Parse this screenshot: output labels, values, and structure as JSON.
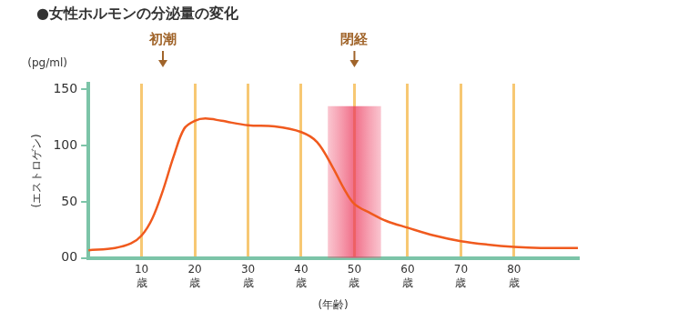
{
  "chart_data": {
    "type": "line",
    "title": "●女性ホルモンの分泌量の変化",
    "y_unit": "(pg/ml)",
    "y_label": "(エストロゲン)",
    "x_label": "(年齢)",
    "x": [
      0,
      5,
      8,
      10,
      12,
      14,
      16,
      18,
      20,
      22,
      25,
      30,
      35,
      40,
      43,
      46,
      48,
      50,
      53,
      56,
      60,
      65,
      70,
      75,
      80,
      85,
      92
    ],
    "values": [
      7,
      9,
      13,
      20,
      35,
      60,
      90,
      115,
      122,
      124,
      122,
      118,
      117,
      112,
      103,
      80,
      62,
      48,
      40,
      33,
      27,
      20,
      15,
      12,
      10,
      9,
      9
    ],
    "color": "#f05a1e",
    "xlim": [
      0,
      92
    ],
    "xticks": [
      {
        "value": 10,
        "label": "10歳"
      },
      {
        "value": 20,
        "label": "20歳"
      },
      {
        "value": 30,
        "label": "30歳"
      },
      {
        "value": 40,
        "label": "40歳"
      },
      {
        "value": 50,
        "label": "50歳"
      },
      {
        "value": 60,
        "label": "60歳"
      },
      {
        "value": 70,
        "label": "70歳"
      },
      {
        "value": 80,
        "label": "80歳"
      }
    ],
    "ylim": [
      0,
      155
    ],
    "yticks": [
      {
        "value": 0,
        "label": "00"
      },
      50,
      100,
      150
    ],
    "grid": "x",
    "annotations": [
      {
        "text": "初潮",
        "x": 14
      },
      {
        "text": "閉経",
        "x": 50
      }
    ],
    "highlight": {
      "x": [
        45,
        55
      ],
      "top": 135
    }
  }
}
